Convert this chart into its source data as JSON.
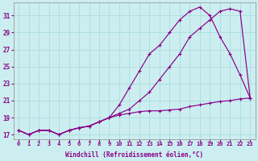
{
  "title": "",
  "xlabel": "Windchill (Refroidissement éolien,°C)",
  "ylabel": "",
  "bg_color": "#cceef0",
  "line_color": "#880088",
  "grid_color": "#aadddd",
  "xlim": [
    -0.5,
    23.5
  ],
  "ylim": [
    16.5,
    32.5
  ],
  "xticks": [
    0,
    1,
    2,
    3,
    4,
    5,
    6,
    7,
    8,
    9,
    10,
    11,
    12,
    13,
    14,
    15,
    16,
    17,
    18,
    19,
    20,
    21,
    22,
    23
  ],
  "yticks": [
    17,
    19,
    21,
    23,
    25,
    27,
    29,
    31
  ],
  "line1_x": [
    0,
    1,
    2,
    3,
    4,
    5,
    6,
    7,
    8,
    9,
    10,
    11,
    12,
    13,
    14,
    15,
    16,
    17,
    18,
    19,
    20,
    21,
    22,
    23
  ],
  "line1_y": [
    17.5,
    17.0,
    17.5,
    17.5,
    17.0,
    17.5,
    17.8,
    18.0,
    18.5,
    19.0,
    19.5,
    20.0,
    21.0,
    22.0,
    23.5,
    25.0,
    26.5,
    28.5,
    29.5,
    30.5,
    31.5,
    31.8,
    31.5,
    21.3
  ],
  "line2_x": [
    0,
    1,
    2,
    3,
    4,
    5,
    6,
    7,
    8,
    9,
    10,
    11,
    12,
    13,
    14,
    15,
    16,
    17,
    18,
    19,
    20,
    21,
    22,
    23
  ],
  "line2_y": [
    17.5,
    17.0,
    17.5,
    17.5,
    17.0,
    17.5,
    17.8,
    18.0,
    18.5,
    19.0,
    20.5,
    22.5,
    24.5,
    26.5,
    27.5,
    29.0,
    30.5,
    31.5,
    32.0,
    31.0,
    28.5,
    26.5,
    24.0,
    21.3
  ],
  "line3_x": [
    0,
    1,
    2,
    3,
    4,
    5,
    6,
    7,
    8,
    9,
    10,
    11,
    12,
    13,
    14,
    15,
    16,
    17,
    18,
    19,
    20,
    21,
    22,
    23
  ],
  "line3_y": [
    17.5,
    17.0,
    17.5,
    17.5,
    17.0,
    17.5,
    17.8,
    18.0,
    18.5,
    19.0,
    19.3,
    19.5,
    19.7,
    19.8,
    19.8,
    19.9,
    20.0,
    20.3,
    20.5,
    20.7,
    20.9,
    21.0,
    21.2,
    21.3
  ]
}
